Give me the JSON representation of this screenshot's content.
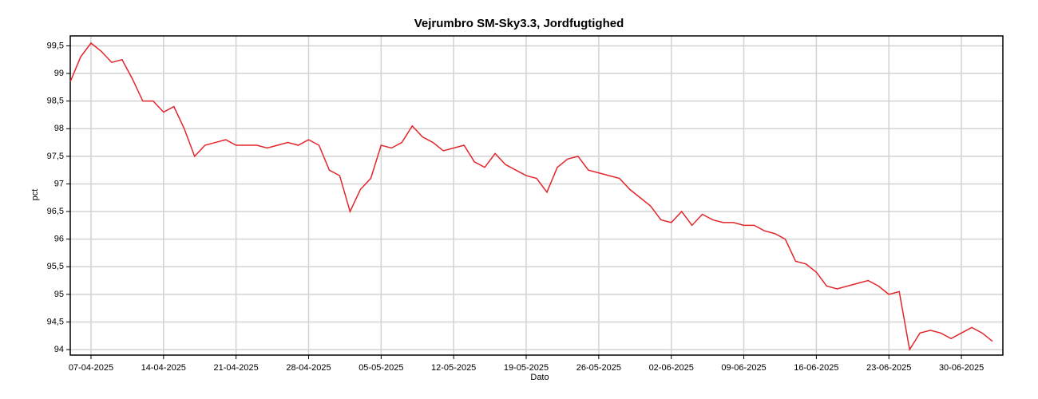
{
  "chart_data": {
    "type": "line",
    "title": "Vejrumbro SM-Sky3.3, Jordfugtighed",
    "xlabel": "Dato",
    "ylabel": "pct",
    "color": "#e3262b",
    "grid": true,
    "x": [
      "2025-04-05",
      "2025-04-06",
      "2025-04-07",
      "2025-04-08",
      "2025-04-09",
      "2025-04-10",
      "2025-04-11",
      "2025-04-12",
      "2025-04-13",
      "2025-04-14",
      "2025-04-15",
      "2025-04-16",
      "2025-04-17",
      "2025-04-18",
      "2025-04-19",
      "2025-04-20",
      "2025-04-21",
      "2025-04-22",
      "2025-04-23",
      "2025-04-24",
      "2025-04-25",
      "2025-04-26",
      "2025-04-27",
      "2025-04-28",
      "2025-04-29",
      "2025-04-30",
      "2025-05-01",
      "2025-05-02",
      "2025-05-03",
      "2025-05-04",
      "2025-05-05",
      "2025-05-06",
      "2025-05-07",
      "2025-05-08",
      "2025-05-09",
      "2025-05-10",
      "2025-05-11",
      "2025-05-12",
      "2025-05-13",
      "2025-05-14",
      "2025-05-15",
      "2025-05-16",
      "2025-05-17",
      "2025-05-18",
      "2025-05-19",
      "2025-05-20",
      "2025-05-21",
      "2025-05-22",
      "2025-05-23",
      "2025-05-24",
      "2025-05-25",
      "2025-05-26",
      "2025-05-27",
      "2025-05-28",
      "2025-05-29",
      "2025-05-30",
      "2025-05-31",
      "2025-06-01",
      "2025-06-02",
      "2025-06-03",
      "2025-06-04",
      "2025-06-05",
      "2025-06-06",
      "2025-06-07",
      "2025-06-08",
      "2025-06-09",
      "2025-06-10",
      "2025-06-11",
      "2025-06-12",
      "2025-06-13",
      "2025-06-14",
      "2025-06-15",
      "2025-06-16",
      "2025-06-17",
      "2025-06-18",
      "2025-06-19",
      "2025-06-20",
      "2025-06-21",
      "2025-06-22",
      "2025-06-23",
      "2025-06-24",
      "2025-06-25",
      "2025-06-26",
      "2025-06-27",
      "2025-06-28",
      "2025-06-29",
      "2025-06-30",
      "2025-07-01",
      "2025-07-02",
      "2025-07-03"
    ],
    "values": [
      98.85,
      99.3,
      99.55,
      99.4,
      99.2,
      99.25,
      98.9,
      98.5,
      98.5,
      98.3,
      98.4,
      98.0,
      97.5,
      97.7,
      97.75,
      97.8,
      97.7,
      97.7,
      97.7,
      97.65,
      97.7,
      97.75,
      97.7,
      97.8,
      97.7,
      97.25,
      97.15,
      96.5,
      96.9,
      97.1,
      97.7,
      97.65,
      97.75,
      98.05,
      97.85,
      97.75,
      97.6,
      97.65,
      97.7,
      97.4,
      97.3,
      97.55,
      97.35,
      97.25,
      97.15,
      97.1,
      96.85,
      97.3,
      97.45,
      97.5,
      97.25,
      97.2,
      97.15,
      97.1,
      96.9,
      96.75,
      96.6,
      96.35,
      96.3,
      96.5,
      96.25,
      96.45,
      96.35,
      96.3,
      96.3,
      96.25,
      96.25,
      96.15,
      96.1,
      96.0,
      95.6,
      95.55,
      95.4,
      95.15,
      95.1,
      95.15,
      95.2,
      95.25,
      95.15,
      95.0,
      95.05,
      94.0,
      94.3,
      94.35,
      94.3,
      94.2,
      94.3,
      94.4,
      94.3,
      94.15
    ],
    "xlim": [
      "2025-04-05",
      "2025-07-04"
    ],
    "xticks": [
      {
        "value": "2025-04-07",
        "label": "07-04-2025"
      },
      {
        "value": "2025-04-14",
        "label": "14-04-2025"
      },
      {
        "value": "2025-04-21",
        "label": "21-04-2025"
      },
      {
        "value": "2025-04-28",
        "label": "28-04-2025"
      },
      {
        "value": "2025-05-05",
        "label": "05-05-2025"
      },
      {
        "value": "2025-05-12",
        "label": "12-05-2025"
      },
      {
        "value": "2025-05-19",
        "label": "19-05-2025"
      },
      {
        "value": "2025-05-26",
        "label": "26-05-2025"
      },
      {
        "value": "2025-06-02",
        "label": "02-06-2025"
      },
      {
        "value": "2025-06-09",
        "label": "09-06-2025"
      },
      {
        "value": "2025-06-16",
        "label": "16-06-2025"
      },
      {
        "value": "2025-06-23",
        "label": "23-06-2025"
      },
      {
        "value": "2025-06-30",
        "label": "30-06-2025"
      }
    ],
    "ylim": [
      93.9,
      99.68
    ],
    "yticks": [
      94,
      {
        "value": 94.5,
        "label": "94,5"
      },
      95,
      {
        "value": 95.5,
        "label": "95,5"
      },
      96,
      {
        "value": 96.5,
        "label": "96,5"
      },
      97,
      {
        "value": 97.5,
        "label": "97,5"
      },
      98,
      {
        "value": 98.5,
        "label": "98,5"
      },
      99,
      {
        "value": 99.5,
        "label": "99,5"
      }
    ]
  }
}
